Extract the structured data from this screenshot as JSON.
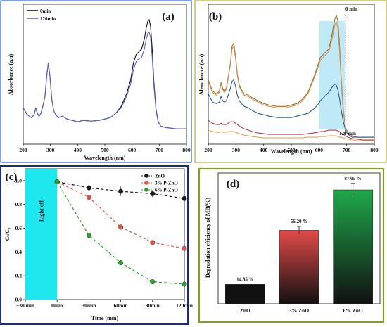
{
  "colors": {
    "panel_a_border": "#2f62c0",
    "panel_b_border": "#b7aa3c",
    "panel_c_border": "#1b2f6e",
    "panel_d_border": "#8c9a27",
    "highlight": "#1fe7ee",
    "highlight_b": "#bfe9f7"
  },
  "chart_data": [
    {
      "id": "a",
      "type": "line",
      "panel_label": "(a)",
      "xlabel": "Wavelength (nm)",
      "ylabel": "Absorbance (a.u)",
      "xlim": [
        200,
        800
      ],
      "ylim": [
        0,
        1
      ],
      "xticks": [
        "200",
        "300",
        "400",
        "500",
        "600",
        "700",
        "800"
      ],
      "legend": "top-left",
      "series": [
        {
          "name": "0min",
          "color": "#111111",
          "x": [
            200,
            215,
            230,
            240,
            246,
            252,
            258,
            265,
            272,
            280,
            286,
            292,
            298,
            305,
            312,
            320,
            330,
            345,
            360,
            380,
            400,
            420,
            450,
            480,
            500,
            520,
            540,
            560,
            580,
            595,
            605,
            615,
            625,
            635,
            645,
            652,
            658,
            663,
            668,
            674,
            680,
            688,
            696,
            705,
            720,
            740,
            760,
            780,
            800
          ],
          "y": [
            0.26,
            0.21,
            0.19,
            0.21,
            0.26,
            0.22,
            0.2,
            0.22,
            0.27,
            0.34,
            0.48,
            0.58,
            0.49,
            0.32,
            0.24,
            0.21,
            0.19,
            0.2,
            0.18,
            0.17,
            0.16,
            0.17,
            0.165,
            0.17,
            0.18,
            0.19,
            0.22,
            0.27,
            0.36,
            0.46,
            0.58,
            0.64,
            0.66,
            0.68,
            0.75,
            0.83,
            0.88,
            0.89,
            0.84,
            0.68,
            0.45,
            0.25,
            0.16,
            0.13,
            0.12,
            0.115,
            0.11,
            0.11,
            0.11
          ]
        },
        {
          "name": "120min",
          "color": "#5b63c8",
          "x": [
            200,
            215,
            230,
            240,
            246,
            252,
            258,
            265,
            272,
            280,
            286,
            292,
            298,
            305,
            312,
            320,
            330,
            345,
            360,
            380,
            400,
            420,
            450,
            480,
            500,
            520,
            540,
            560,
            580,
            595,
            605,
            615,
            625,
            635,
            645,
            652,
            658,
            663,
            668,
            674,
            680,
            688,
            696,
            705,
            720,
            740,
            760,
            780,
            800
          ],
          "y": [
            0.26,
            0.21,
            0.19,
            0.21,
            0.26,
            0.22,
            0.2,
            0.22,
            0.27,
            0.34,
            0.48,
            0.58,
            0.49,
            0.32,
            0.24,
            0.21,
            0.19,
            0.2,
            0.18,
            0.17,
            0.16,
            0.17,
            0.165,
            0.17,
            0.18,
            0.19,
            0.22,
            0.26,
            0.34,
            0.43,
            0.53,
            0.59,
            0.61,
            0.62,
            0.68,
            0.75,
            0.79,
            0.8,
            0.76,
            0.62,
            0.42,
            0.24,
            0.16,
            0.13,
            0.12,
            0.115,
            0.11,
            0.11,
            0.11
          ]
        }
      ]
    },
    {
      "id": "b",
      "type": "line",
      "panel_label": "(b)",
      "xlabel": "Wavelength (nm)",
      "ylabel": "Absorbance (a.u)",
      "xlim": [
        200,
        800
      ],
      "ylim": [
        0,
        1
      ],
      "xticks": [
        "200",
        "300",
        "400",
        "500",
        "600",
        "700",
        "800"
      ],
      "highlight_x": [
        600,
        695
      ],
      "marker_x": 695,
      "annotations": [
        "0 min",
        "120 min"
      ],
      "series": [
        {
          "name": "",
          "color": "#8b7a2a",
          "x": [
            200,
            215,
            230,
            240,
            246,
            252,
            258,
            265,
            272,
            280,
            286,
            292,
            298,
            305,
            312,
            320,
            330,
            345,
            360,
            380,
            400,
            420,
            450,
            480,
            500,
            520,
            540,
            560,
            580,
            595,
            605,
            615,
            625,
            635,
            645,
            652,
            658,
            663,
            668,
            674,
            680,
            688,
            696,
            705,
            720,
            740,
            760,
            780,
            800
          ],
          "y": [
            0.46,
            0.38,
            0.36,
            0.38,
            0.44,
            0.4,
            0.38,
            0.4,
            0.48,
            0.58,
            0.7,
            0.72,
            0.64,
            0.5,
            0.42,
            0.39,
            0.36,
            0.35,
            0.33,
            0.31,
            0.29,
            0.28,
            0.27,
            0.27,
            0.28,
            0.29,
            0.32,
            0.37,
            0.47,
            0.56,
            0.62,
            0.64,
            0.66,
            0.68,
            0.76,
            0.84,
            0.9,
            0.92,
            0.88,
            0.72,
            0.48,
            0.24,
            0.12,
            0.08,
            0.06,
            0.05,
            0.05,
            0.05,
            0.05
          ]
        },
        {
          "name": "",
          "color": "#d88a5a",
          "x": [
            200,
            215,
            230,
            240,
            246,
            252,
            258,
            265,
            272,
            280,
            286,
            292,
            298,
            305,
            312,
            320,
            330,
            345,
            360,
            380,
            400,
            420,
            450,
            480,
            500,
            520,
            540,
            560,
            580,
            595,
            605,
            615,
            625,
            635,
            645,
            652,
            658,
            663,
            668,
            674,
            680,
            688,
            696,
            705,
            720,
            740,
            760,
            780,
            800
          ],
          "y": [
            0.45,
            0.37,
            0.35,
            0.37,
            0.43,
            0.39,
            0.37,
            0.39,
            0.47,
            0.57,
            0.68,
            0.7,
            0.62,
            0.49,
            0.41,
            0.38,
            0.35,
            0.34,
            0.32,
            0.3,
            0.28,
            0.27,
            0.26,
            0.26,
            0.27,
            0.28,
            0.31,
            0.36,
            0.46,
            0.54,
            0.6,
            0.62,
            0.64,
            0.66,
            0.73,
            0.8,
            0.86,
            0.87,
            0.83,
            0.68,
            0.46,
            0.23,
            0.12,
            0.08,
            0.06,
            0.05,
            0.05,
            0.05,
            0.05
          ]
        },
        {
          "name": "",
          "color": "#2e5c8c",
          "x": [
            200,
            215,
            230,
            240,
            246,
            252,
            258,
            265,
            272,
            280,
            286,
            292,
            298,
            305,
            312,
            320,
            330,
            345,
            360,
            380,
            400,
            420,
            450,
            480,
            500,
            520,
            540,
            560,
            580,
            595,
            605,
            615,
            625,
            635,
            645,
            652,
            658,
            663,
            668,
            674,
            680,
            688,
            696,
            705,
            720,
            740,
            760,
            780,
            800
          ],
          "y": [
            0.36,
            0.3,
            0.29,
            0.3,
            0.34,
            0.31,
            0.3,
            0.31,
            0.35,
            0.4,
            0.45,
            0.46,
            0.42,
            0.35,
            0.31,
            0.29,
            0.27,
            0.26,
            0.24,
            0.22,
            0.21,
            0.2,
            0.19,
            0.19,
            0.19,
            0.2,
            0.21,
            0.22,
            0.25,
            0.28,
            0.31,
            0.33,
            0.35,
            0.37,
            0.4,
            0.42,
            0.43,
            0.42,
            0.39,
            0.33,
            0.25,
            0.16,
            0.1,
            0.07,
            0.05,
            0.05,
            0.05,
            0.05,
            0.05
          ]
        },
        {
          "name": "",
          "color": "#b83a4a",
          "x": [
            200,
            215,
            230,
            240,
            246,
            252,
            258,
            265,
            272,
            280,
            286,
            292,
            298,
            305,
            312,
            320,
            330,
            345,
            360,
            380,
            400,
            420,
            450,
            480,
            500,
            520,
            540,
            560,
            580,
            595,
            605,
            615,
            625,
            635,
            645,
            652,
            658,
            663,
            668,
            674,
            680,
            688,
            696,
            705,
            720,
            740,
            760,
            780,
            800
          ],
          "y": [
            0.17,
            0.15,
            0.14,
            0.14,
            0.15,
            0.14,
            0.14,
            0.14,
            0.15,
            0.16,
            0.16,
            0.16,
            0.15,
            0.14,
            0.13,
            0.12,
            0.11,
            0.1,
            0.09,
            0.08,
            0.075,
            0.07,
            0.07,
            0.07,
            0.07,
            0.07,
            0.07,
            0.075,
            0.08,
            0.085,
            0.09,
            0.09,
            0.095,
            0.1,
            0.1,
            0.1,
            0.1,
            0.1,
            0.095,
            0.09,
            0.08,
            0.07,
            0.06,
            0.05,
            0.04,
            0.035,
            0.03,
            0.03,
            0.03
          ]
        },
        {
          "name": "",
          "color": "#e5a050",
          "x": [
            200,
            215,
            230,
            240,
            246,
            252,
            258,
            265,
            272,
            280,
            286,
            292,
            298,
            305,
            312,
            320,
            330,
            345,
            360,
            380,
            400,
            420,
            450,
            480,
            500,
            520,
            540,
            560,
            580,
            595,
            605,
            615,
            625,
            635,
            645,
            652,
            658,
            663,
            668,
            674,
            680,
            688,
            696,
            705,
            720,
            740,
            760,
            780,
            800
          ],
          "y": [
            0.1,
            0.09,
            0.085,
            0.085,
            0.09,
            0.085,
            0.085,
            0.085,
            0.09,
            0.09,
            0.09,
            0.09,
            0.085,
            0.08,
            0.075,
            0.07,
            0.065,
            0.06,
            0.055,
            0.05,
            0.045,
            0.045,
            0.045,
            0.045,
            0.045,
            0.045,
            0.045,
            0.05,
            0.05,
            0.05,
            0.055,
            0.055,
            0.055,
            0.06,
            0.06,
            0.06,
            0.06,
            0.06,
            0.055,
            0.05,
            0.05,
            0.045,
            0.04,
            0.035,
            0.03,
            0.025,
            0.025,
            0.025,
            0.025
          ]
        }
      ]
    },
    {
      "id": "c",
      "type": "line",
      "panel_label": "(c)",
      "xlabel": "Time (min)",
      "ylabel": "Cₜ/C₀",
      "xlim": [
        -30,
        120
      ],
      "ylim": [
        0,
        1.1
      ],
      "xticks": [
        "−30 min",
        "0min",
        "30min",
        "60min",
        "90min",
        "120min"
      ],
      "yticks": [
        "0.0",
        "0.2",
        "0.4",
        "0.6",
        "0.8",
        "1.0"
      ],
      "shaded_region": [
        -30,
        0
      ],
      "shaded_label": "Light off",
      "legend": "top-right",
      "x": [
        0,
        30,
        60,
        90,
        120
      ],
      "series": [
        {
          "name": "ZnO",
          "color": "#1a1a1a",
          "values": [
            0.99,
            0.94,
            0.91,
            0.89,
            0.85
          ],
          "err": [
            0.02,
            0.04,
            0.04,
            0.03,
            0.03
          ]
        },
        {
          "name": "3% P-ZnO",
          "color": "#e0574f",
          "values": [
            0.99,
            0.86,
            0.61,
            0.48,
            0.43
          ],
          "err": [
            0.02,
            0.03,
            0.02,
            0.02,
            0.02
          ]
        },
        {
          "name": "6% P-ZnO",
          "color": "#2ca02c",
          "values": [
            0.99,
            0.54,
            0.31,
            0.15,
            0.13
          ],
          "err": [
            0.02,
            0.02,
            0.01,
            0.01,
            0.01
          ]
        }
      ]
    },
    {
      "id": "d",
      "type": "bar",
      "panel_label": "(d)",
      "xlabel": "",
      "ylabel": "Degradation efficiency of MB(%)",
      "ylim": [
        0,
        100
      ],
      "categories": [
        "ZnO",
        "3% ZnO",
        "6% ZnO"
      ],
      "values": [
        14.85,
        56.2,
        87.05
      ],
      "value_labels": [
        "14.85 %",
        "56.20 %",
        "87.05 %"
      ],
      "err": [
        0,
        3,
        5
      ],
      "colors": [
        "#111111",
        "#e24a4a",
        "#1fa84a"
      ]
    }
  ]
}
